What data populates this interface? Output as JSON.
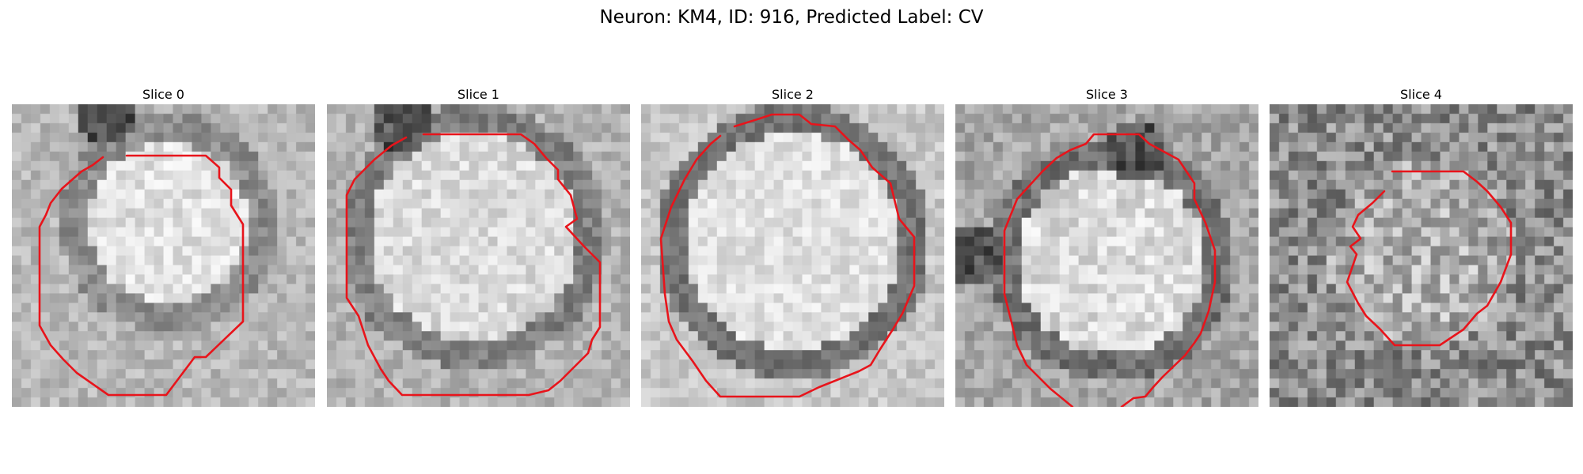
{
  "figure": {
    "title": "Neuron: KM4, ID: 916, Predicted Label: CV",
    "contour_color": "#e8141b"
  },
  "slices": [
    {
      "title": "Slice 0"
    },
    {
      "title": "Slice 1"
    },
    {
      "title": "Slice 2"
    },
    {
      "title": "Slice 3"
    },
    {
      "title": "Slice 4"
    }
  ]
}
